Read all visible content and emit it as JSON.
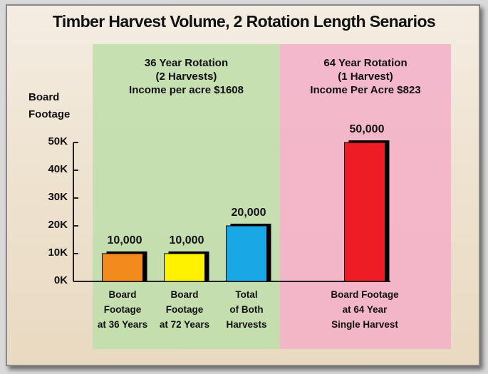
{
  "chart_data": {
    "type": "bar",
    "title": "Timber Harvest Volume, 2 Rotation Length Senarios",
    "annotations": [
      "36 Year Rotation\n(2 Harvests)\nIncome per acre $1608",
      "64 Year Rotation\n(1 Harvest)\nIncome Per Acre $823"
    ],
    "y_label": "Board\nFootage",
    "categories": [
      "Board\nFootage\nat 36 Years",
      "Board\nFootage\nat 72 Years",
      "Total\nof Both\nHarvests",
      "Board Footage\nat 64 Year\nSingle Harvest"
    ],
    "values": [
      10000,
      10000,
      20000,
      50000
    ],
    "value_labels": [
      "10,000",
      "10,000",
      "20,000",
      "50,000"
    ],
    "colors": [
      "#f28a1e",
      "#fff200",
      "#1aa7e6",
      "#ee1c25"
    ],
    "ylim": [
      0,
      50000
    ],
    "yticks": [
      {
        "value": 0,
        "label": "0K"
      },
      {
        "value": 10000,
        "label": "10K"
      },
      {
        "value": 20000,
        "label": "20K"
      },
      {
        "value": 30000,
        "label": "30K"
      },
      {
        "value": 40000,
        "label": "40K"
      },
      {
        "value": 50000,
        "label": "50K"
      }
    ]
  }
}
